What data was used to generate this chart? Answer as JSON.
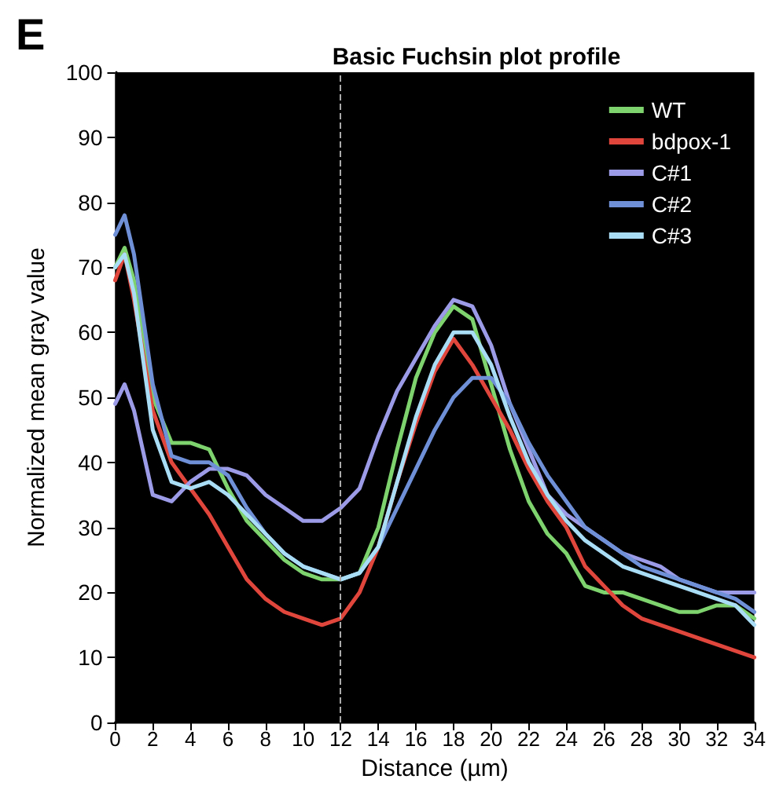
{
  "chart_data": {
    "type": "line",
    "title": "Basic Fuchsin plot profile",
    "xlabel": "Distance (µm)",
    "ylabel": "Normalized mean gray value",
    "annotations": [
      "E"
    ],
    "x": [
      0,
      0.5,
      1,
      2,
      3,
      4,
      5,
      6,
      7,
      8,
      9,
      10,
      11,
      12,
      13,
      14,
      15,
      16,
      17,
      18,
      19,
      20,
      21,
      22,
      23,
      24,
      25,
      26,
      27,
      28,
      29,
      30,
      31,
      32,
      33,
      34
    ],
    "series": [
      {
        "name": "WT",
        "color": "#7fd36e",
        "values": [
          70,
          73,
          68,
          50,
          43,
          43,
          42,
          36,
          31,
          28,
          25,
          23,
          22,
          22,
          23,
          30,
          42,
          53,
          60,
          64,
          62,
          52,
          42,
          34,
          29,
          26,
          21,
          20,
          20,
          19,
          18,
          17,
          17,
          18,
          18,
          16
        ]
      },
      {
        "name": "bdpox-1",
        "color": "#e0463c",
        "values": [
          68,
          72,
          65,
          48,
          40,
          36,
          32,
          27,
          22,
          19,
          17,
          16,
          15,
          16,
          20,
          27,
          37,
          46,
          54,
          59,
          55,
          50,
          45,
          39,
          34,
          30,
          24,
          21,
          18,
          16,
          15,
          14,
          13,
          12,
          11,
          10
        ]
      },
      {
        "name": "C#1",
        "color": "#9b9be8",
        "values": [
          49,
          52,
          48,
          35,
          34,
          37,
          39,
          39,
          38,
          35,
          33,
          31,
          31,
          33,
          36,
          44,
          51,
          56,
          61,
          65,
          64,
          58,
          49,
          42,
          35,
          32,
          30,
          28,
          26,
          25,
          24,
          22,
          21,
          20,
          20,
          20
        ]
      },
      {
        "name": "C#2",
        "color": "#6f8fd6",
        "values": [
          75,
          78,
          72,
          52,
          41,
          40,
          40,
          38,
          33,
          29,
          26,
          24,
          23,
          22,
          23,
          27,
          33,
          39,
          45,
          50,
          53,
          53,
          49,
          43,
          38,
          34,
          30,
          28,
          26,
          24,
          23,
          22,
          21,
          20,
          19,
          17
        ]
      },
      {
        "name": "C#3",
        "color": "#a9dcf5",
        "values": [
          70,
          72,
          66,
          45,
          37,
          36,
          37,
          35,
          32,
          29,
          26,
          24,
          23,
          22,
          23,
          27,
          37,
          47,
          55,
          60,
          60,
          55,
          47,
          40,
          35,
          31,
          28,
          26,
          24,
          23,
          22,
          21,
          20,
          19,
          18,
          15
        ]
      }
    ],
    "xlim": [
      0,
      34
    ],
    "xticks": [
      0,
      2,
      4,
      6,
      8,
      10,
      12,
      14,
      16,
      18,
      20,
      22,
      24,
      26,
      28,
      30,
      32,
      34
    ],
    "ylim": [
      0,
      100
    ],
    "yticks": [
      0,
      10,
      20,
      30,
      40,
      50,
      60,
      70,
      80,
      90,
      100
    ],
    "ref_lines": [
      {
        "axis": "x",
        "value": 12,
        "color": "#aaaaaa",
        "line_style": "dashed"
      }
    ],
    "grid": false,
    "legend": "top right",
    "marker": "none",
    "line_style": "solid"
  }
}
